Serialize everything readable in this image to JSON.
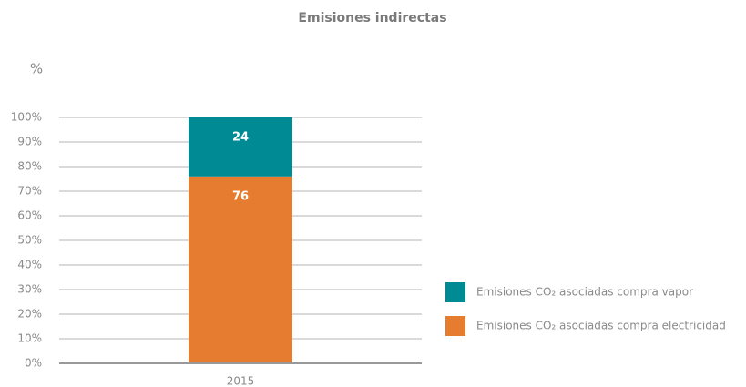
{
  "chart_data": {
    "type": "stacked-bar",
    "title": "Emisiones indirectas",
    "y_label": "%",
    "categories": [
      "2015"
    ],
    "series": [
      {
        "name": "Emisiones CO₂ asociadas compra vapor",
        "color": "#008a93",
        "values": [
          24
        ]
      },
      {
        "name": "Emisiones CO₂ asociadas compra electricidad",
        "color": "#e57c2f",
        "values": [
          76
        ]
      }
    ],
    "ylim": [
      0,
      100
    ],
    "yticks": [
      {
        "value": 0,
        "label": "0%"
      },
      {
        "value": 10,
        "label": "10%"
      },
      {
        "value": 20,
        "label": "20%"
      },
      {
        "value": 30,
        "label": "30%"
      },
      {
        "value": 40,
        "label": "40%"
      },
      {
        "value": 50,
        "label": "50%"
      },
      {
        "value": 60,
        "label": "60%"
      },
      {
        "value": 70,
        "label": "70%"
      },
      {
        "value": 80,
        "label": "80%"
      },
      {
        "value": 90,
        "label": "90%"
      },
      {
        "value": 100,
        "label": "100%"
      }
    ],
    "grid": true,
    "legend": "right"
  }
}
